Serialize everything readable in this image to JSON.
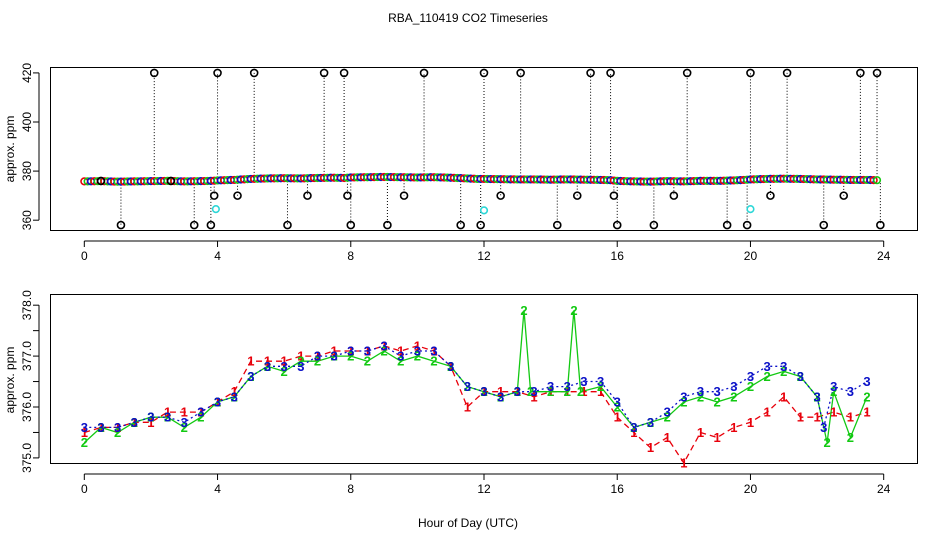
{
  "chart_data": {
    "title": "RBA_110419  CO2 Timeseries",
    "xlabel": "Hour of Day (UTC)",
    "colors": {
      "ch1": "#e8000b",
      "ch2": "#12c912",
      "ch3": "#0a10c8",
      "flag": "#000000",
      "cal": "#2cd7d7"
    },
    "panels": [
      {
        "name": "top",
        "type": "scatter",
        "ylabel": "approx. ppm",
        "xlim": [
          -1,
          25
        ],
        "ylim": [
          356,
          422
        ],
        "xticks": [
          0,
          4,
          8,
          12,
          16,
          20,
          24
        ],
        "xtick_labels": [
          "0",
          "4",
          "8",
          "12",
          "16",
          "20",
          "24"
        ],
        "yticks": [
          360,
          380,
          400,
          420
        ],
        "ytick_labels": [
          "360",
          "380",
          "400",
          "420"
        ],
        "baseline_series": [
          {
            "x": [
              0.0,
              0.5,
              1.0,
              1.5,
              2.0,
              2.5,
              3.0,
              3.5,
              3.8,
              4.0,
              4.5,
              5.0,
              5.5,
              6.0,
              6.5,
              7.0,
              7.5,
              7.8,
              8.0,
              8.5,
              9.0,
              9.5,
              10.0,
              10.5,
              11.0,
              11.5,
              11.8,
              12.0,
              12.5,
              13.0,
              13.5,
              14.0,
              14.5,
              15.0,
              15.5,
              15.8,
              16.0,
              16.5,
              17.0,
              17.5,
              18.0,
              18.5,
              19.0,
              19.5,
              19.8,
              20.0,
              20.5,
              21.0,
              21.5,
              22.0,
              22.5,
              23.0,
              23.5,
              23.8
            ],
            "y": [
              375.8,
              375.9,
              375.7,
              375.8,
              375.9,
              376.0,
              375.8,
              375.9,
              376.0,
              376.2,
              376.4,
              376.8,
              377.0,
              377.1,
              377.0,
              377.2,
              377.3,
              377.2,
              377.4,
              377.5,
              377.6,
              377.5,
              377.4,
              377.5,
              377.3,
              377.0,
              376.8,
              376.8,
              376.7,
              376.6,
              376.6,
              376.5,
              376.6,
              376.5,
              376.4,
              376.3,
              376.0,
              375.8,
              375.7,
              375.9,
              375.8,
              376.0,
              376.0,
              376.2,
              376.4,
              376.6,
              376.8,
              376.9,
              376.8,
              376.6,
              376.5,
              376.4,
              376.4,
              376.3
            ]
          }
        ],
        "flagged_x": [
          0.5,
          1.1,
          2.1,
          2.6,
          3.3,
          3.8,
          3.9,
          4.0,
          4.6,
          5.1,
          6.1,
          6.7,
          7.2,
          7.8,
          7.9,
          8.0,
          9.1,
          9.6,
          10.2,
          11.3,
          11.9,
          12.0,
          12.5,
          13.1,
          14.2,
          14.8,
          15.2,
          15.8,
          15.9,
          16.0,
          17.1,
          17.7,
          18.1,
          19.3,
          19.9,
          20.0,
          20.6,
          21.1,
          22.2,
          22.8,
          23.3,
          23.8,
          23.9
        ],
        "flagged_y": [
          376,
          358,
          420,
          376,
          358,
          358,
          370,
          420,
          370,
          420,
          358,
          370,
          420,
          420,
          370,
          358,
          358,
          370,
          420,
          358,
          358,
          420,
          370,
          420,
          358,
          370,
          420,
          420,
          370,
          358,
          358,
          370,
          420,
          358,
          358,
          420,
          370,
          420,
          358,
          370,
          420,
          420,
          358
        ],
        "cal_points": [
          {
            "x": 3.95,
            "y": 364.5
          },
          {
            "x": 12.0,
            "y": 364.0
          },
          {
            "x": 20.0,
            "y": 364.5
          }
        ]
      },
      {
        "name": "bottom",
        "type": "line",
        "ylabel": "approx. ppm",
        "xlim": [
          -1,
          25
        ],
        "ylim": [
          374.9,
          378.2
        ],
        "xticks": [
          0,
          4,
          8,
          12,
          16,
          20,
          24
        ],
        "xtick_labels": [
          "0",
          "4",
          "8",
          "12",
          "16",
          "20",
          "24"
        ],
        "yticks": [
          375.0,
          375.5,
          376.0,
          376.5,
          377.0,
          377.5,
          378.0
        ],
        "ytick_labels": [
          "375.0",
          "",
          "376.0",
          "",
          "377.0",
          "",
          "378.0"
        ],
        "series": [
          {
            "name": "1",
            "symbol": "1",
            "dash": "6,4",
            "x": [
              0.0,
              0.5,
              1.0,
              1.5,
              2.0,
              2.5,
              3.0,
              3.5,
              4.0,
              4.5,
              5.0,
              5.5,
              6.0,
              6.5,
              7.0,
              7.5,
              8.0,
              8.5,
              9.0,
              9.5,
              10.0,
              10.5,
              11.0,
              11.5,
              12.0,
              12.5,
              13.0,
              13.5,
              14.0,
              14.5,
              15.0,
              15.5,
              16.0,
              16.5,
              17.0,
              17.5,
              18.0,
              18.5,
              19.0,
              19.5,
              20.0,
              20.5,
              21.0,
              21.5,
              22.0,
              22.5,
              23.0,
              23.5
            ],
            "y": [
              375.5,
              375.6,
              375.6,
              375.7,
              375.7,
              375.9,
              375.9,
              375.9,
              376.1,
              376.3,
              376.9,
              376.9,
              376.9,
              377.0,
              377.0,
              377.1,
              377.1,
              377.1,
              377.2,
              377.1,
              377.2,
              377.1,
              376.8,
              376.0,
              376.3,
              376.3,
              376.3,
              376.2,
              376.3,
              376.3,
              376.3,
              376.3,
              375.8,
              375.5,
              375.2,
              375.4,
              374.9,
              375.5,
              375.4,
              375.6,
              375.7,
              375.9,
              376.2,
              375.8,
              375.8,
              375.9,
              375.8,
              375.9
            ]
          },
          {
            "name": "2",
            "symbol": "2",
            "dash": "",
            "x": [
              0.0,
              0.5,
              1.0,
              1.5,
              2.0,
              2.5,
              3.0,
              3.5,
              4.0,
              4.5,
              5.0,
              5.5,
              6.0,
              6.5,
              7.0,
              7.5,
              8.0,
              8.5,
              9.0,
              9.5,
              10.0,
              10.5,
              11.0,
              11.5,
              12.0,
              12.5,
              13.0,
              13.2,
              13.4,
              14.0,
              14.5,
              14.7,
              14.9,
              15.5,
              16.0,
              16.5,
              17.0,
              17.5,
              18.0,
              18.5,
              19.0,
              19.5,
              20.0,
              20.5,
              21.0,
              21.5,
              22.0,
              22.3,
              22.5,
              23.0,
              23.5
            ],
            "y": [
              375.3,
              375.6,
              375.5,
              375.7,
              375.8,
              375.8,
              375.6,
              375.8,
              376.1,
              376.2,
              376.6,
              376.8,
              376.7,
              376.9,
              376.9,
              377.0,
              377.0,
              376.9,
              377.1,
              376.9,
              377.0,
              376.9,
              376.8,
              376.4,
              376.3,
              376.2,
              376.3,
              377.9,
              376.3,
              376.3,
              376.3,
              377.9,
              376.3,
              376.4,
              376.0,
              375.6,
              375.7,
              375.8,
              376.1,
              376.2,
              376.1,
              376.2,
              376.4,
              376.6,
              376.7,
              376.6,
              376.2,
              375.3,
              376.3,
              375.4,
              376.2
            ]
          },
          {
            "name": "3",
            "symbol": "3",
            "dash": "2,3",
            "x": [
              0.0,
              0.5,
              1.0,
              1.5,
              2.0,
              2.5,
              3.0,
              3.5,
              4.0,
              4.5,
              5.0,
              5.5,
              6.0,
              6.5,
              7.0,
              7.5,
              8.0,
              8.5,
              9.0,
              9.5,
              10.0,
              10.5,
              11.0,
              11.5,
              12.0,
              12.5,
              13.0,
              13.5,
              14.0,
              14.5,
              15.0,
              15.5,
              16.0,
              16.5,
              17.0,
              17.5,
              18.0,
              18.5,
              19.0,
              19.5,
              20.0,
              20.5,
              21.0,
              21.5,
              22.0,
              22.2,
              22.5,
              23.0,
              23.5
            ],
            "y": [
              375.6,
              375.6,
              375.6,
              375.7,
              375.8,
              375.8,
              375.7,
              375.9,
              376.1,
              376.2,
              376.6,
              376.8,
              376.8,
              376.8,
              377.0,
              377.0,
              377.1,
              377.1,
              377.2,
              377.0,
              377.1,
              377.1,
              376.8,
              376.4,
              376.3,
              376.2,
              376.3,
              376.3,
              376.4,
              376.4,
              376.5,
              376.5,
              376.1,
              375.6,
              375.7,
              375.9,
              376.2,
              376.3,
              376.3,
              376.4,
              376.6,
              376.8,
              376.8,
              376.6,
              376.2,
              375.6,
              376.4,
              376.3,
              376.5
            ]
          }
        ]
      }
    ]
  }
}
